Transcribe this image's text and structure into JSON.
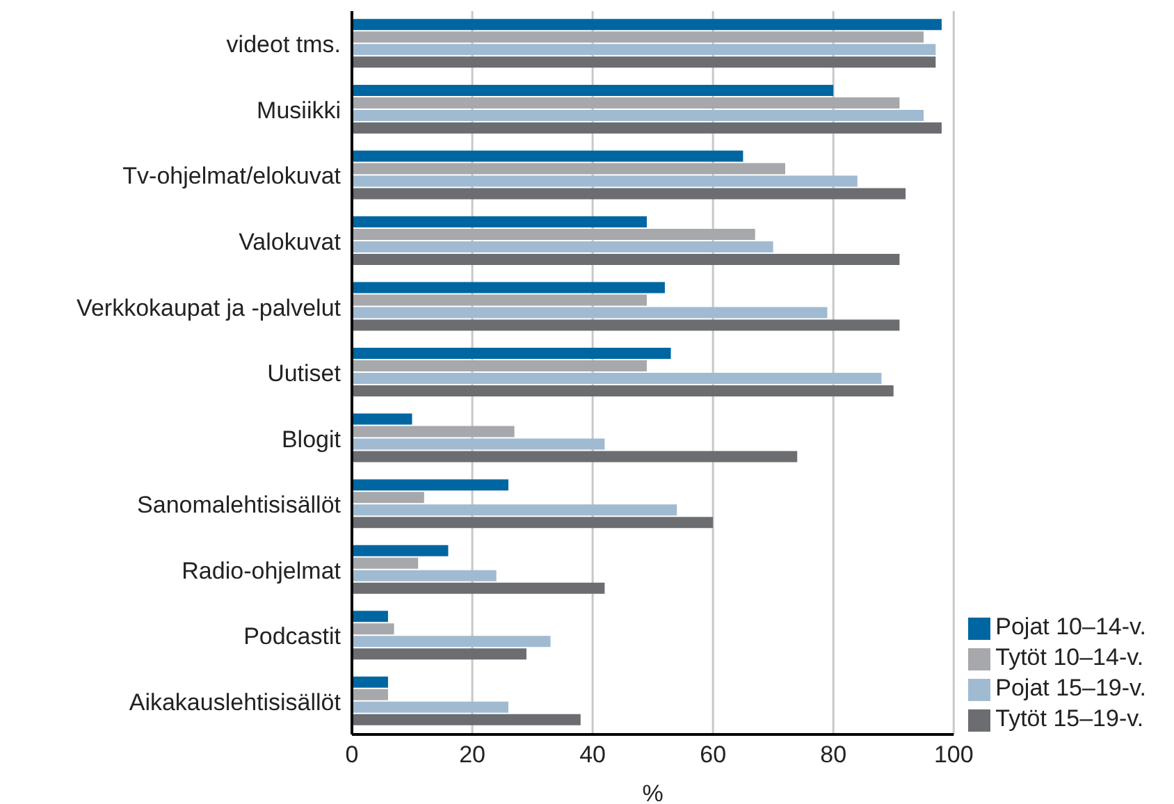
{
  "chart_data": {
    "type": "bar",
    "orientation": "horizontal",
    "xlabel": "%",
    "categories": [
      "videot tms.",
      "Musiikki",
      "Tv-ohjelmat/elokuvat",
      "Valokuvat",
      "Verkkokaupat ja -palvelut",
      "Uutiset",
      "Blogit",
      "Sanomalehtisisällöt",
      "Radio-ohjelmat",
      "Podcastit",
      "Aikakauslehtisisällöt"
    ],
    "series": [
      {
        "name": "Pojat 10–14-v.",
        "color": "#0066a1",
        "values": [
          98,
          80,
          65,
          49,
          52,
          53,
          10,
          26,
          16,
          6,
          6
        ]
      },
      {
        "name": "Tytöt 10–14-v.",
        "color": "#a7a8ab",
        "values": [
          95,
          91,
          72,
          67,
          49,
          49,
          27,
          12,
          11,
          7,
          6
        ]
      },
      {
        "name": "Pojat 15–19-v.",
        "color": "#a0bbd1",
        "values": [
          97,
          95,
          84,
          70,
          79,
          88,
          42,
          54,
          24,
          33,
          26
        ]
      },
      {
        "name": "Tytöt 15–19-v.",
        "color": "#6c6d71",
        "values": [
          97,
          98,
          92,
          91,
          91,
          90,
          74,
          60,
          42,
          29,
          38
        ]
      }
    ],
    "xlim": [
      0,
      100
    ],
    "xticks": [
      0,
      20,
      40,
      60,
      80,
      100
    ],
    "grid": "x",
    "legend": "bottom right"
  }
}
